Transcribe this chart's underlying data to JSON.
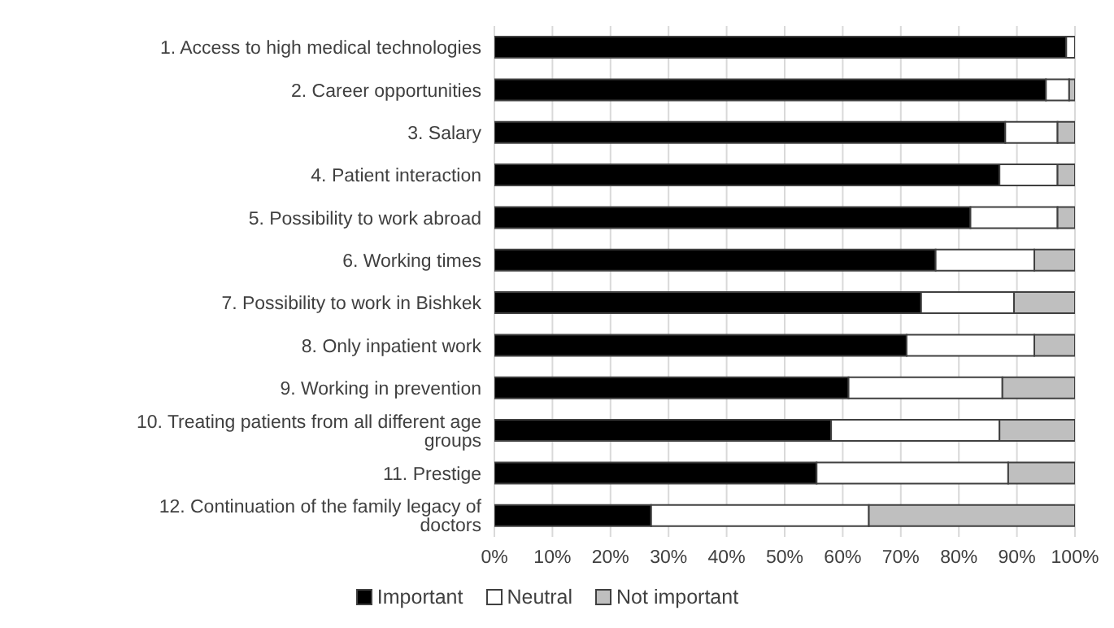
{
  "chart_data": {
    "type": "bar",
    "orientation": "horizontal",
    "stacked": true,
    "categories": [
      "1. Access to high medical technologies",
      "2. Career opportunities",
      "3. Salary",
      "4. Patient interaction",
      "5. Possibility to work abroad",
      "6. Working times",
      "7. Possibility to work in Bishkek",
      "8. Only inpatient  work",
      "9. Working in prevention",
      "10. Treating patients from all different age groups",
      "11. Prestige",
      "12. Continuation of the family legacy of doctors"
    ],
    "series": [
      {
        "name": "Important",
        "color": "#000000",
        "values": [
          98.5,
          95,
          88,
          87,
          82,
          76,
          73.5,
          71,
          61,
          58,
          55.5,
          27
        ]
      },
      {
        "name": "Neutral",
        "color": "#ffffff",
        "values": [
          1.5,
          4,
          9,
          10,
          15,
          17,
          16,
          22,
          26.5,
          29,
          33,
          37.5
        ]
      },
      {
        "name": "Not important",
        "color": "#bfbfbf",
        "values": [
          0,
          1,
          3,
          3,
          3,
          7,
          10.5,
          7,
          12.5,
          13,
          11.5,
          35.5
        ]
      }
    ],
    "xlim": [
      0,
      100
    ],
    "xticks": [
      {
        "value": 0,
        "label": "0%"
      },
      {
        "value": 10,
        "label": "10%"
      },
      {
        "value": 20,
        "label": "20%"
      },
      {
        "value": 30,
        "label": "30%"
      },
      {
        "value": 40,
        "label": "40%"
      },
      {
        "value": 50,
        "label": "50%"
      },
      {
        "value": 60,
        "label": "60%"
      },
      {
        "value": 70,
        "label": "70%"
      },
      {
        "value": 80,
        "label": "80%"
      },
      {
        "value": 90,
        "label": "90%"
      },
      {
        "value": 100,
        "label": "100%"
      }
    ],
    "grid": "x",
    "legend": "bottom"
  }
}
